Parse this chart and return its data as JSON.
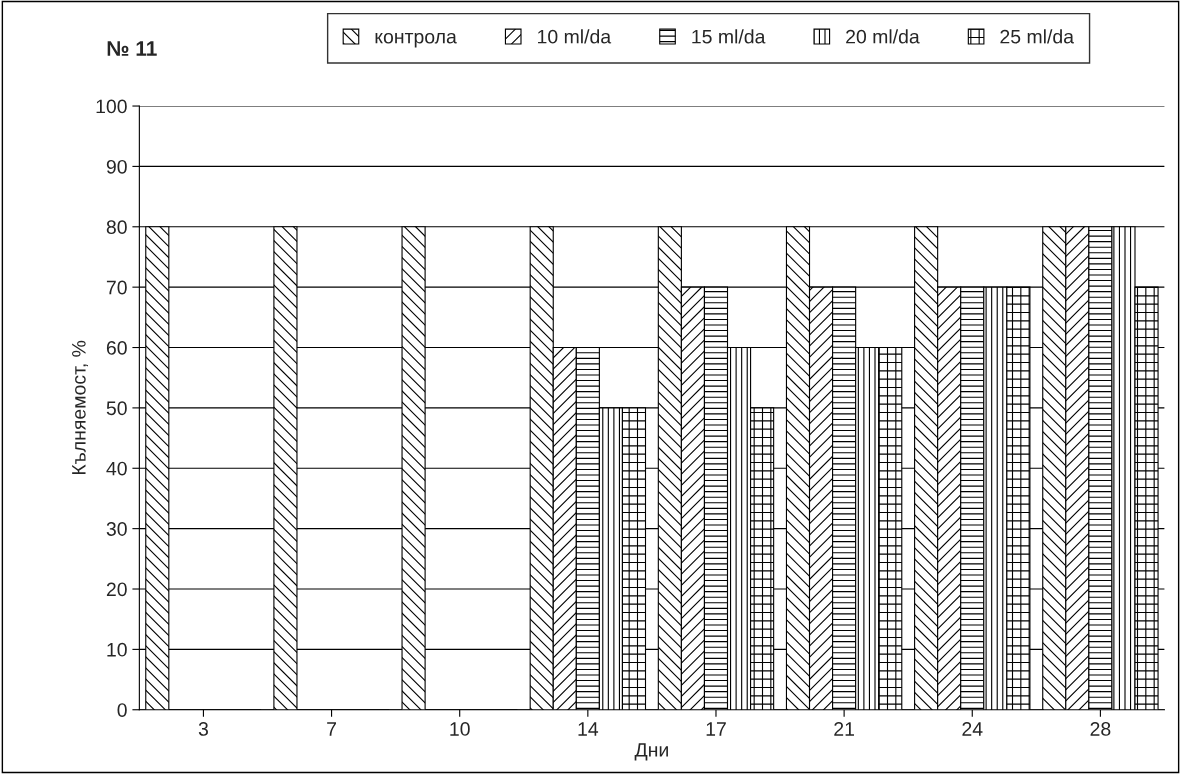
{
  "chart_data": {
    "type": "bar",
    "title": "№ 11",
    "xlabel": "Дни",
    "ylabel": "Кълняемост, %",
    "categories": [
      "3",
      "7",
      "10",
      "14",
      "17",
      "21",
      "24",
      "28"
    ],
    "series": [
      {
        "name": "контрола",
        "color": "#000000",
        "values": [
          80,
          80,
          80,
          80,
          80,
          80,
          80,
          80
        ]
      },
      {
        "name": "10 ml/da",
        "color": "#000000",
        "values": [
          null,
          null,
          null,
          60,
          70,
          70,
          70,
          80
        ]
      },
      {
        "name": "15 ml/da",
        "color": "#000000",
        "values": [
          null,
          null,
          null,
          60,
          70,
          70,
          70,
          80
        ]
      },
      {
        "name": "20 ml/da",
        "color": "#000000",
        "values": [
          null,
          null,
          null,
          50,
          60,
          60,
          70,
          80
        ]
      },
      {
        "name": "25 ml/da",
        "color": "#000000",
        "values": [
          null,
          null,
          null,
          50,
          50,
          60,
          70,
          70
        ]
      }
    ],
    "ylim": [
      0,
      100
    ],
    "yticks": [
      0,
      10,
      20,
      30,
      40,
      50,
      60,
      70,
      80,
      90,
      100
    ],
    "grid": "y",
    "legend": "top"
  }
}
